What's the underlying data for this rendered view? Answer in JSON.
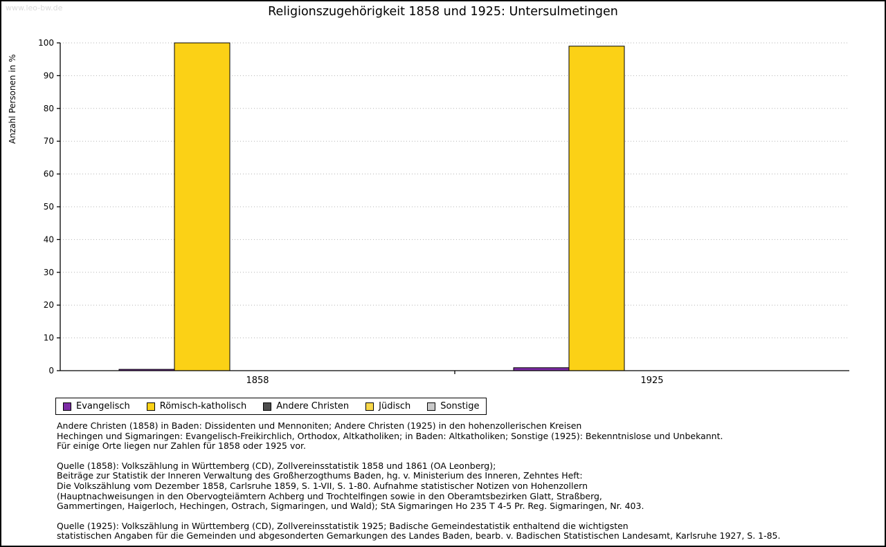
{
  "watermark": "www.leo-bw.de",
  "chart_data": {
    "type": "bar",
    "title": "Religionszugehörigkeit 1858 und 1925: Untersulmetingen",
    "ylabel": "Anzahl Personen in %",
    "xlabel": "",
    "ylim": [
      0,
      100
    ],
    "ytick_step": 10,
    "grid": true,
    "legend_position": "bottom",
    "categories": [
      "1858",
      "1925"
    ],
    "series": [
      {
        "name": "Evangelisch",
        "color": "#7d2ca5",
        "values": [
          0.4,
          0.9
        ]
      },
      {
        "name": "Römisch-katholisch",
        "color": "#fbd116",
        "values": [
          100,
          99
        ]
      },
      {
        "name": "Andere Christen",
        "color": "#4d4d4d",
        "values": [
          0,
          0
        ]
      },
      {
        "name": "Jüdisch",
        "color": "#f8d84a",
        "values": [
          0,
          0
        ]
      },
      {
        "name": "Sonstige",
        "color": "#c9c9c9",
        "values": [
          0,
          0
        ]
      }
    ]
  },
  "notes": {
    "paragraphs": [
      [
        "Andere Christen (1858) in Baden: Dissidenten und Mennoniten; Andere Christen (1925) in den hohenzollerischen Kreisen",
        "Hechingen und Sigmaringen: Evangelisch-Freikirchlich, Orthodox, Altkatholiken; in Baden: Altkatholiken; Sonstige (1925): Bekenntnislose und Unbekannt.",
        "Für einige Orte liegen nur Zahlen für 1858 oder 1925 vor."
      ],
      [
        "Quelle (1858): Volkszählung in Württemberg (CD), Zollvereinsstatistik 1858 und 1861 (OA Leonberg);",
        "Beiträge zur Statistik der Inneren Verwaltung des Großherzogthums Baden, hg. v. Ministerium des Inneren, Zehntes Heft:",
        "Die Volkszählung vom Dezember 1858, Carlsruhe 1859, S. 1-VII, S. 1-80. Aufnahme statistischer Notizen von Hohenzollern",
        "(Hauptnachweisungen in den Obervogteiämtern Achberg und Trochtelfingen sowie in den Oberamtsbezirken Glatt, Straßberg,",
        "Gammertingen, Haigerloch, Hechingen, Ostrach, Sigmaringen, und Wald); StA Sigmaringen Ho 235 T 4-5 Pr. Reg. Sigmaringen, Nr. 403."
      ],
      [
        "Quelle (1925): Volkszählung in Württemberg (CD), Zollvereinsstatistik 1925; Badische Gemeindestatistik enthaltend die wichtigsten",
        "statistischen Angaben für die Gemeinden und abgesonderten Gemarkungen des Landes Baden, bearb. v. Badischen Statistischen Landesamt, Karlsruhe 1927, S. 1-85."
      ]
    ]
  }
}
